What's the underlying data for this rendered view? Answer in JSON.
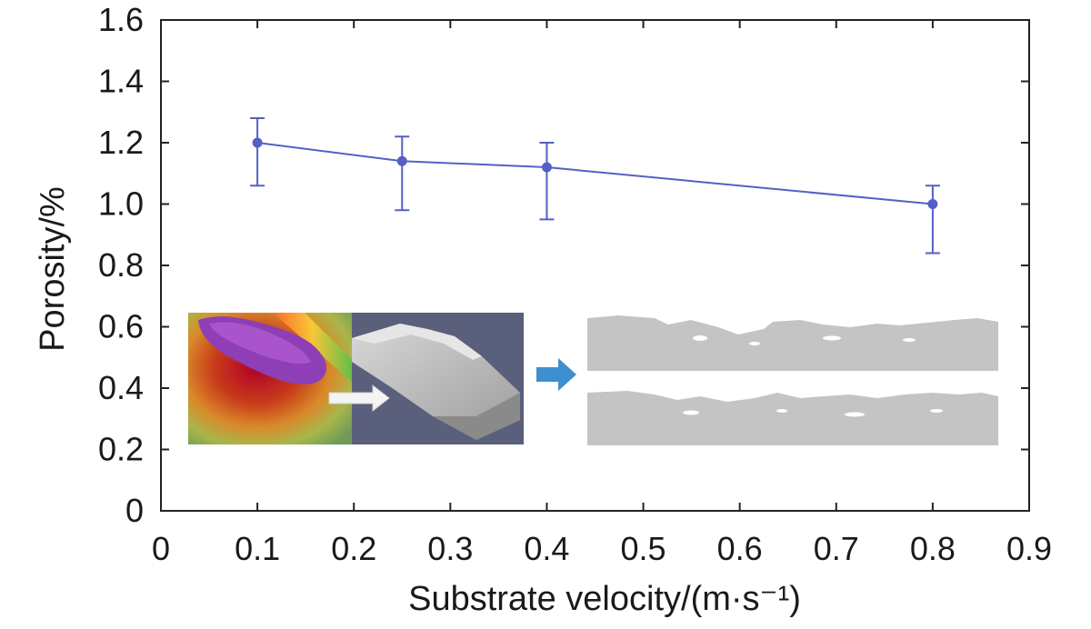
{
  "chart_data": {
    "type": "line",
    "xlabel": "Substrate velocity/(m·s⁻¹)",
    "ylabel": "Porosity/%",
    "xlim": [
      0,
      0.9
    ],
    "ylim": [
      0,
      1.6
    ],
    "xticks": [
      "0",
      "0.1",
      "0.2",
      "0.3",
      "0.4",
      "0.5",
      "0.6",
      "0.7",
      "0.8",
      "0.9"
    ],
    "yticks": [
      "0",
      "0.2",
      "0.4",
      "0.6",
      "0.8",
      "1.0",
      "1.2",
      "1.4",
      "1.6"
    ],
    "grid": false,
    "series": [
      {
        "x": [
          0.1,
          0.25,
          0.4,
          0.8
        ],
        "y": [
          1.2,
          1.14,
          1.12,
          1.0
        ],
        "err_upper": [
          1.28,
          1.22,
          1.2,
          1.06
        ],
        "err_lower": [
          1.06,
          0.98,
          0.95,
          0.84
        ],
        "color": "#5560c4"
      }
    ],
    "inset": {
      "description_icons": [
        "simulation-melt-pool-image",
        "white-arrow",
        "blue-arrow",
        "cross-section-slices"
      ],
      "colors": {
        "blue_arrow": "#3d8fd0",
        "slate_background": "#5a5f7c",
        "cross_section_gray": "#c4c4c4"
      }
    }
  }
}
